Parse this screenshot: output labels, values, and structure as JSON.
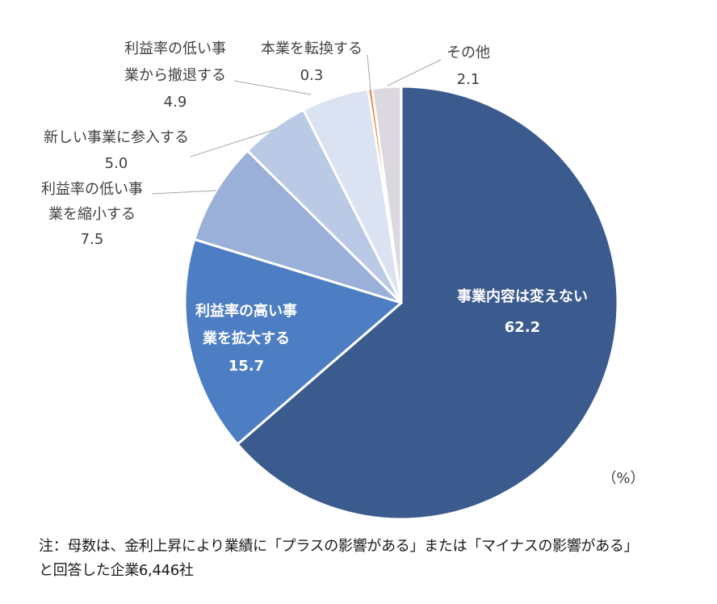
{
  "chart_data": {
    "type": "pie",
    "unit_label": "（%）",
    "start_angle_deg": 0,
    "direction": "clockwise",
    "slices": [
      {
        "label_lines": [
          "事業内容は変えない"
        ],
        "value": 62.2,
        "value_text": "62.2",
        "color": "#3b5a8e",
        "label_inside": true
      },
      {
        "label_lines": [
          "利益率の高い事",
          "業を拡大する"
        ],
        "value": 15.7,
        "value_text": "15.7",
        "color": "#4d7dc3",
        "label_inside": true
      },
      {
        "label_lines": [
          "利益率の低い事",
          "業を縮小する"
        ],
        "value": 7.5,
        "value_text": "7.5",
        "color": "#9ab0d9",
        "label_inside": false
      },
      {
        "label_lines": [
          "新しい事業に参入する"
        ],
        "value": 5.0,
        "value_text": "5.0",
        "color": "#b9c9e6",
        "label_inside": false
      },
      {
        "label_lines": [
          "利益率の低い事",
          "業から撤退する"
        ],
        "value": 4.9,
        "value_text": "4.9",
        "color": "#dbe3f3",
        "label_inside": false
      },
      {
        "label_lines": [
          "本業を転換する"
        ],
        "value": 0.3,
        "value_text": "0.3",
        "color": "#ed7d31",
        "label_inside": false
      },
      {
        "label_lines": [
          "その他"
        ],
        "value": 2.1,
        "value_text": "2.1",
        "color": "#dcd8df",
        "label_inside": false
      }
    ]
  },
  "note": {
    "line1": "注：母数は、金利上昇により業績に「プラスの影響がある」または「マイナスの影響がある」",
    "line2": "と回答した企業6,446社"
  }
}
